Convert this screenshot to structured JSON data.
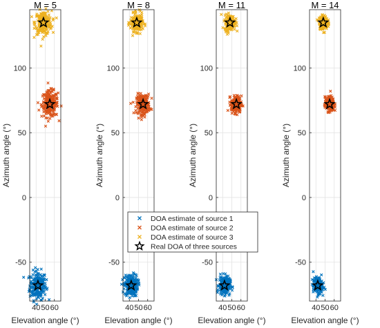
{
  "chart_data": {
    "type": "scatter",
    "xlabel": "Elevation angle (°)",
    "ylabel": "Azimuth angle (°)",
    "xlim": [
      33,
      67
    ],
    "ylim": [
      -80,
      145
    ],
    "xticks": [
      40,
      50,
      60
    ],
    "yticks": [
      -50,
      0,
      50,
      100
    ],
    "grid": true,
    "colors": {
      "source1": "#0072BD",
      "source2": "#D95319",
      "source3": "#EDB120",
      "star": "#000000"
    },
    "legend": {
      "placement": "bottom-left-inside-second-panel",
      "entries": [
        {
          "label": "DOA estimate of source 1",
          "marker": "x",
          "color": "#0072BD"
        },
        {
          "label": "DOA estimate of source 2",
          "marker": "x",
          "color": "#D95319"
        },
        {
          "label": "DOA estimate of source 3",
          "marker": "x",
          "color": "#EDB120"
        },
        {
          "label": "Real DOA of three sources",
          "marker": "pentagram",
          "color": "#000000"
        }
      ]
    },
    "real_doa": [
      {
        "x": 42,
        "y": -68
      },
      {
        "x": 55,
        "y": 72
      },
      {
        "x": 48,
        "y": 135
      }
    ],
    "panels": [
      {
        "title": "M = 5",
        "spread": [
          {
            "sx": 4.5,
            "sy": 5.5
          },
          {
            "sx": 4.5,
            "sy": 5.0
          },
          {
            "sx": 4.5,
            "sy": 4.5
          }
        ]
      },
      {
        "title": "M = 8",
        "spread": [
          {
            "sx": 3.6,
            "sy": 4.2
          },
          {
            "sx": 3.6,
            "sy": 3.8
          },
          {
            "sx": 3.4,
            "sy": 3.4
          }
        ]
      },
      {
        "title": "M = 11",
        "spread": [
          {
            "sx": 3.0,
            "sy": 3.5
          },
          {
            "sx": 2.8,
            "sy": 3.2
          },
          {
            "sx": 2.8,
            "sy": 3.0
          }
        ]
      },
      {
        "title": "M = 14",
        "spread": [
          {
            "sx": 2.5,
            "sy": 3.0
          },
          {
            "sx": 2.5,
            "sy": 2.8
          },
          {
            "sx": 2.3,
            "sy": 2.5
          }
        ]
      }
    ]
  }
}
